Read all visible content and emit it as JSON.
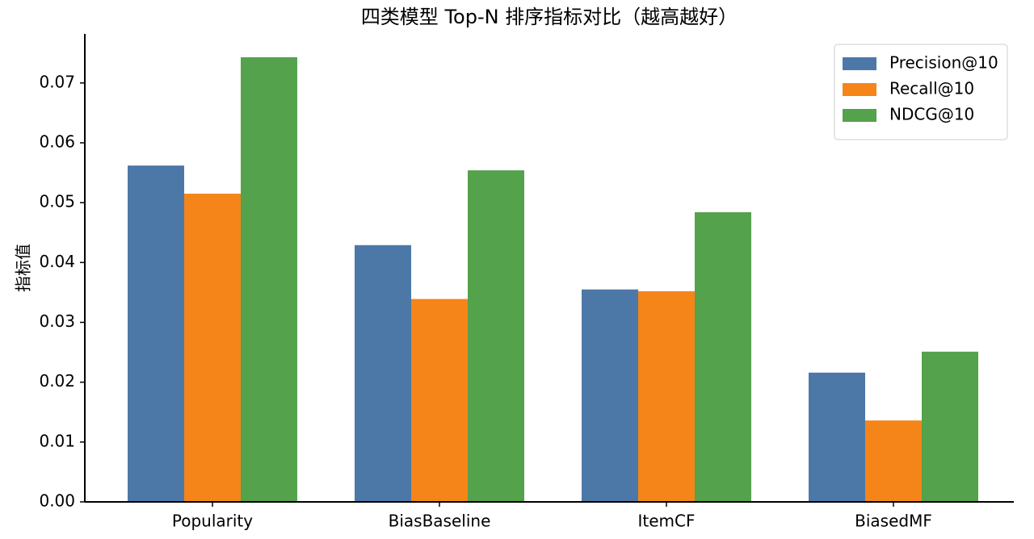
{
  "chart_data": {
    "type": "bar",
    "title": "四类模型 Top-N 排序指标对比（越高越好）",
    "y_label": "指标值",
    "categories": [
      "Popularity",
      "BiasBaseline",
      "ItemCF",
      "BiasedMF"
    ],
    "series": [
      {
        "name": "Precision@10",
        "color": "#4c78a8",
        "values": [
          0.0562,
          0.0429,
          0.0355,
          0.0216
        ]
      },
      {
        "name": "Recall@10",
        "color": "#f58518",
        "values": [
          0.0515,
          0.0339,
          0.0352,
          0.0136
        ]
      },
      {
        "name": "NDCG@10",
        "color": "#54a24b",
        "values": [
          0.0743,
          0.0554,
          0.0484,
          0.0251
        ]
      }
    ],
    "ylim": [
      0,
      0.0782
    ],
    "yticks": [
      {
        "value": 0,
        "label": "0.00"
      },
      {
        "value": 0.01,
        "label": "0.01"
      },
      {
        "value": 0.02,
        "label": "0.02"
      },
      {
        "value": 0.03,
        "label": "0.03"
      },
      {
        "value": 0.04,
        "label": "0.04"
      },
      {
        "value": 0.05,
        "label": "0.05"
      },
      {
        "value": 0.06,
        "label": "0.06"
      },
      {
        "value": 0.07,
        "label": "0.07"
      }
    ],
    "grid": false,
    "legend_position": "upper-right"
  }
}
